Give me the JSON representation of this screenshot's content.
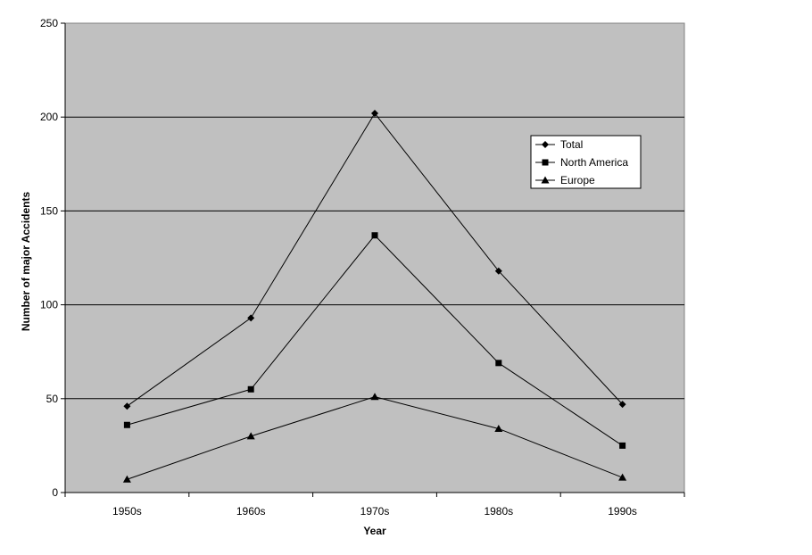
{
  "chart_data": {
    "type": "line",
    "title": "",
    "xlabel": "Year",
    "ylabel": "Number of major Accidents",
    "categories": [
      "1950s",
      "1960s",
      "1970s",
      "1980s",
      "1990s"
    ],
    "ylim": [
      0,
      250
    ],
    "yticks": [
      0,
      50,
      100,
      150,
      200,
      250
    ],
    "grid": "horizontal",
    "legend_position": "right",
    "plot_background": "#c0c0c0",
    "series": [
      {
        "name": "Total",
        "marker": "diamond",
        "color": "#000000",
        "values": [
          46,
          93,
          202,
          118,
          47
        ]
      },
      {
        "name": "North America",
        "marker": "square",
        "color": "#000000",
        "values": [
          36,
          55,
          137,
          69,
          25
        ]
      },
      {
        "name": "Europe",
        "marker": "triangle",
        "color": "#000000",
        "values": [
          7,
          30,
          51,
          34,
          8
        ]
      }
    ]
  }
}
